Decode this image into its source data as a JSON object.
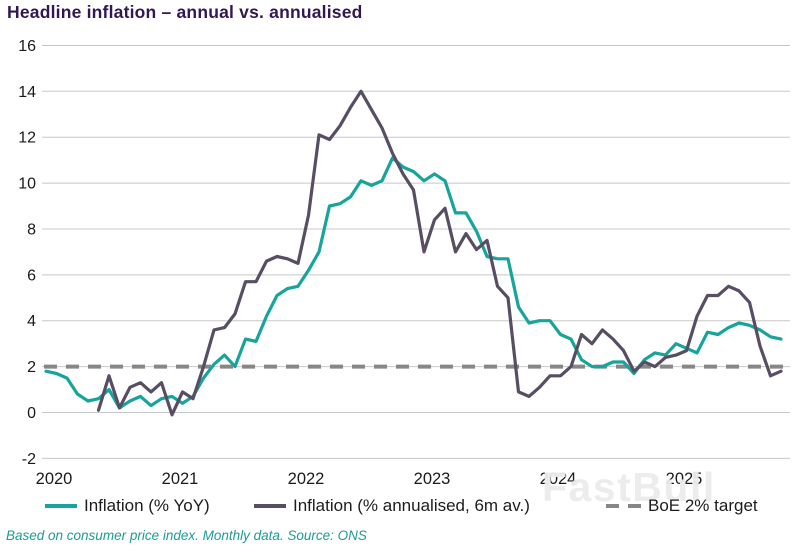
{
  "title": "Headline inflation – annual vs. annualised",
  "footnote": "Based on consumer price index. Monthly data. Source: ONS",
  "watermark": "FastBull",
  "colors": {
    "title": "#321850",
    "grid": "#c8c8c8",
    "axis_text": "#1a1a1a",
    "footnote": "#1d9b93",
    "watermark": "#ececec",
    "background": "#ffffff"
  },
  "chart_data": {
    "type": "line",
    "title": "Headline inflation – annual vs. annualised",
    "xlabel": "",
    "ylabel": "",
    "grid": "horizontal",
    "legend_position": "bottom",
    "ylim": [
      -2,
      16
    ],
    "yticks": [
      16,
      14,
      12,
      10,
      8,
      6,
      4,
      2,
      0,
      -2
    ],
    "x_unit": "month",
    "x_range": [
      "2020-01",
      "2025-11"
    ],
    "x_tick_labels": [
      "2020",
      "2021",
      "2022",
      "2023",
      "2024",
      "2025"
    ],
    "series": [
      {
        "name": "Inflation (% YoY)",
        "type": "line",
        "color": "#16a49b",
        "start": "2020-01",
        "start_month_index": 0,
        "values": [
          1.8,
          1.7,
          1.5,
          0.8,
          0.5,
          0.6,
          1.0,
          0.2,
          0.5,
          0.7,
          0.3,
          0.6,
          0.7,
          0.4,
          0.7,
          1.5,
          2.1,
          2.5,
          2.0,
          3.2,
          3.1,
          4.2,
          5.1,
          5.4,
          5.5,
          6.2,
          7.0,
          9.0,
          9.1,
          9.4,
          10.1,
          9.9,
          10.1,
          11.1,
          10.7,
          10.5,
          10.1,
          10.4,
          10.1,
          8.7,
          8.7,
          7.9,
          6.8,
          6.7,
          6.7,
          4.6,
          3.9,
          4.0,
          4.0,
          3.4,
          3.2,
          2.3,
          2.0,
          2.0,
          2.2,
          2.2,
          1.7,
          2.3,
          2.6,
          2.5,
          3.0,
          2.8,
          2.6,
          3.5,
          3.4,
          3.7,
          3.9,
          3.8,
          3.6,
          3.3,
          3.2
        ]
      },
      {
        "name": "Inflation (% annualised, 6m av.)",
        "type": "line",
        "color": "#574e63",
        "start": "2020-06",
        "start_month_index": 5,
        "values": [
          0.1,
          1.6,
          0.2,
          1.1,
          1.3,
          0.9,
          1.3,
          -0.1,
          0.9,
          0.6,
          2.0,
          3.6,
          3.7,
          4.3,
          5.7,
          5.7,
          6.6,
          6.8,
          6.7,
          6.5,
          8.6,
          12.1,
          11.9,
          12.5,
          13.3,
          14.0,
          13.2,
          12.4,
          11.3,
          10.4,
          9.7,
          7.0,
          8.4,
          8.9,
          7.0,
          7.8,
          7.1,
          7.5,
          5.5,
          5.0,
          0.9,
          0.7,
          1.1,
          1.6,
          1.6,
          2.0,
          3.4,
          3.0,
          3.6,
          3.2,
          2.7,
          1.8,
          2.2,
          2.0,
          2.4,
          2.5,
          2.7,
          4.2,
          5.1,
          5.1,
          5.5,
          5.3,
          4.8,
          2.9,
          1.6,
          1.8
        ]
      },
      {
        "name": "BoE 2% target",
        "type": "constant",
        "style": "dashed",
        "color": "#878787",
        "value": 2
      }
    ]
  }
}
